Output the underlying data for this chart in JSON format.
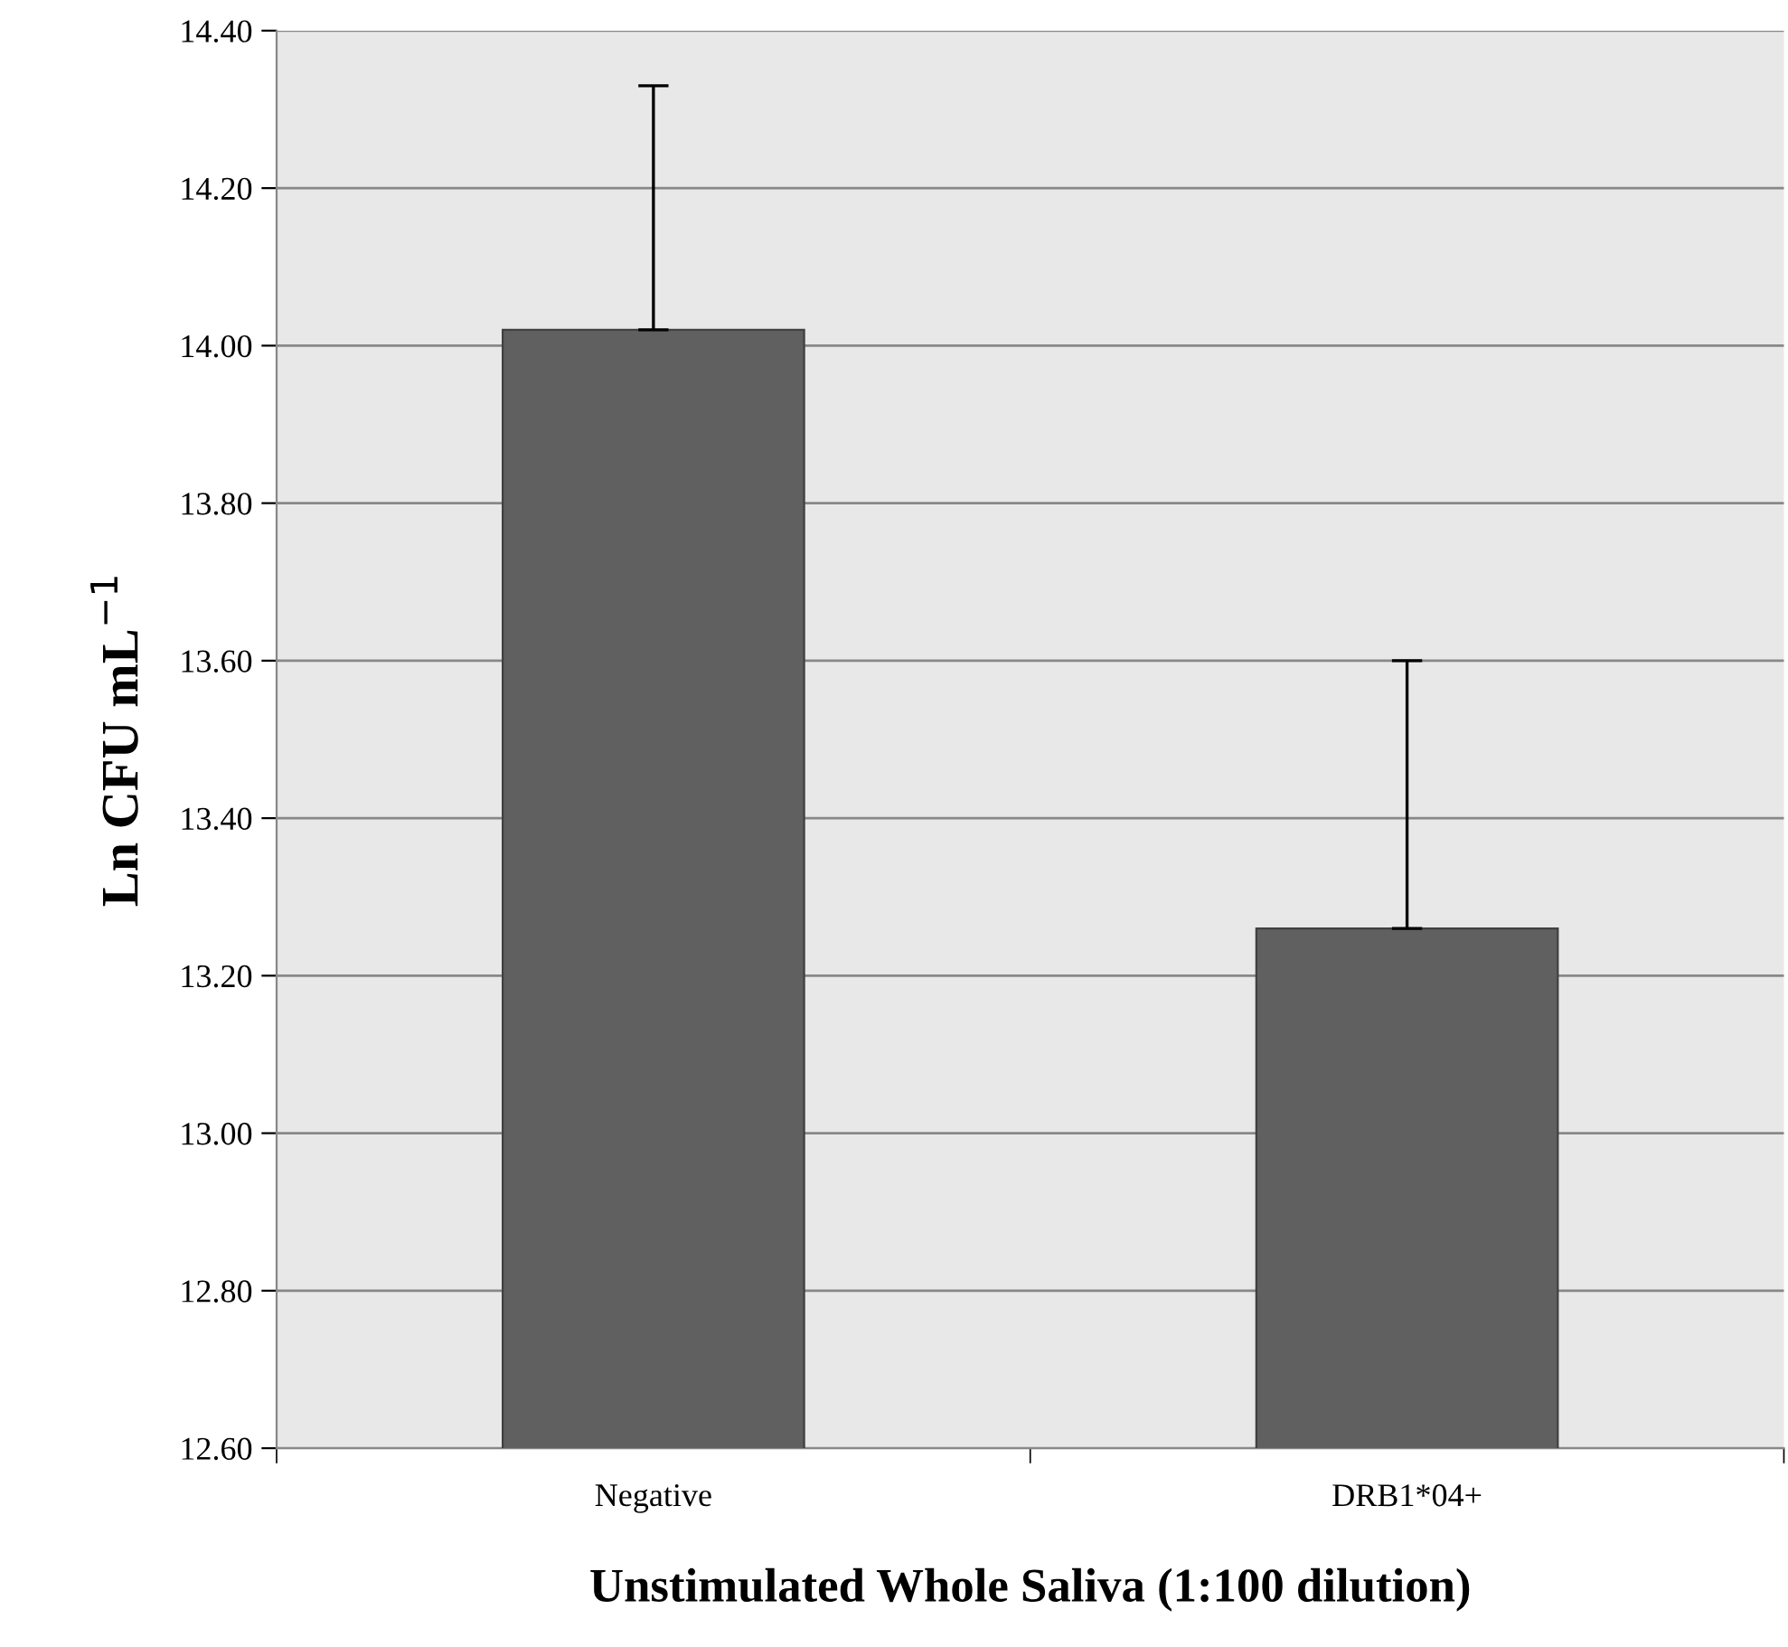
{
  "chart_data": {
    "type": "bar",
    "xlabel": "Unstimulated Whole Saliva (1:100 dilution)",
    "ylabel": "Ln CFU mL$^{−1}$",
    "categories": [
      "Negative",
      "DRB1*04+"
    ],
    "values": [
      14.02,
      13.26
    ],
    "errors": [
      [
        14.02,
        14.33
      ],
      [
        13.26,
        13.6
      ]
    ],
    "color": "#606060",
    "ylim": [
      12.6,
      14.4
    ],
    "yticks": [
      {
        "value": 12.6,
        "label": "12.60"
      },
      {
        "value": 12.8,
        "label": "12.80"
      },
      {
        "value": 13.0,
        "label": "13.00"
      },
      {
        "value": 13.2,
        "label": "13.20"
      },
      {
        "value": 13.4,
        "label": "13.40"
      },
      {
        "value": 13.6,
        "label": "13.60"
      },
      {
        "value": 13.8,
        "label": "13.80"
      },
      {
        "value": 14.0,
        "label": "14.00"
      },
      {
        "value": 14.2,
        "label": "14.20"
      },
      {
        "value": 14.4,
        "label": "14.40"
      }
    ],
    "grid": "y"
  }
}
